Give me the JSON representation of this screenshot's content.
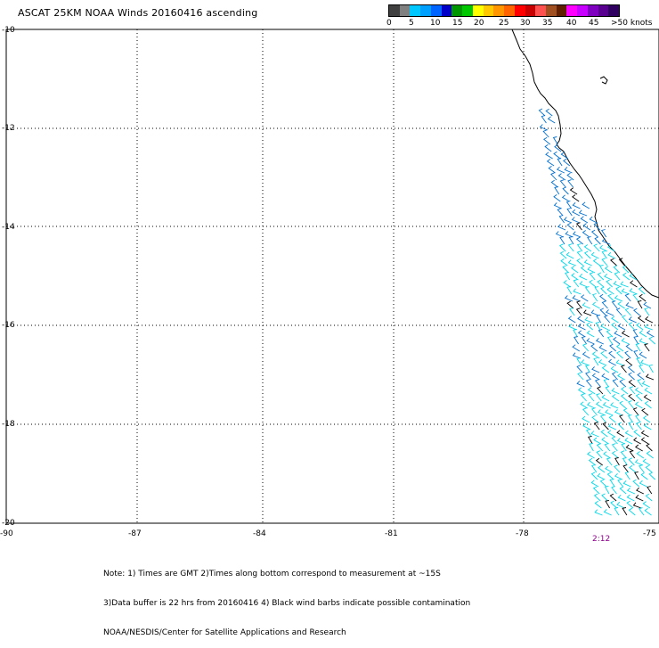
{
  "title": "ASCAT 25KM NOAA Winds 20160416 ascending",
  "colors": {
    "scale": [
      "#404040",
      "#808080",
      "#00c8ff",
      "#00a0ff",
      "#0064ff",
      "#0000c8",
      "#009600",
      "#00c800",
      "#ffff00",
      "#ffc800",
      "#ff9600",
      "#ff6400",
      "#ff0000",
      "#c80000",
      "#ff5050",
      "#a05020",
      "#602000",
      "#ff00ff",
      "#c800ff",
      "#8000c0",
      "#5a0090",
      "#300060"
    ],
    "coast": "#000000",
    "barb_cyan": "#00d8e8",
    "barb_blue": "#0070d0",
    "barb_black": "#000000"
  },
  "scale_labels": [
    "0",
    "5",
    "10",
    "15",
    "20",
    "25",
    "30",
    "35",
    "40",
    "45",
    ">50 knots"
  ],
  "lat_labels": [
    "-10",
    "-12",
    "-14",
    "-16",
    "-18",
    "-20"
  ],
  "lon_labels": [
    "-90",
    "-87",
    "-84",
    "-81",
    "-78",
    "-75"
  ],
  "time_label": "2:12",
  "notes": [
    "Note: 1) Times are GMT 2)Times along bottom correspond to measurement at ~15S",
    "     3)Data buffer is 22 hrs from 20160416 4) Black wind barbs indicate possible contamination",
    "                              NOAA/NESDIS/Center for Satellite Applications and Research"
  ]
}
